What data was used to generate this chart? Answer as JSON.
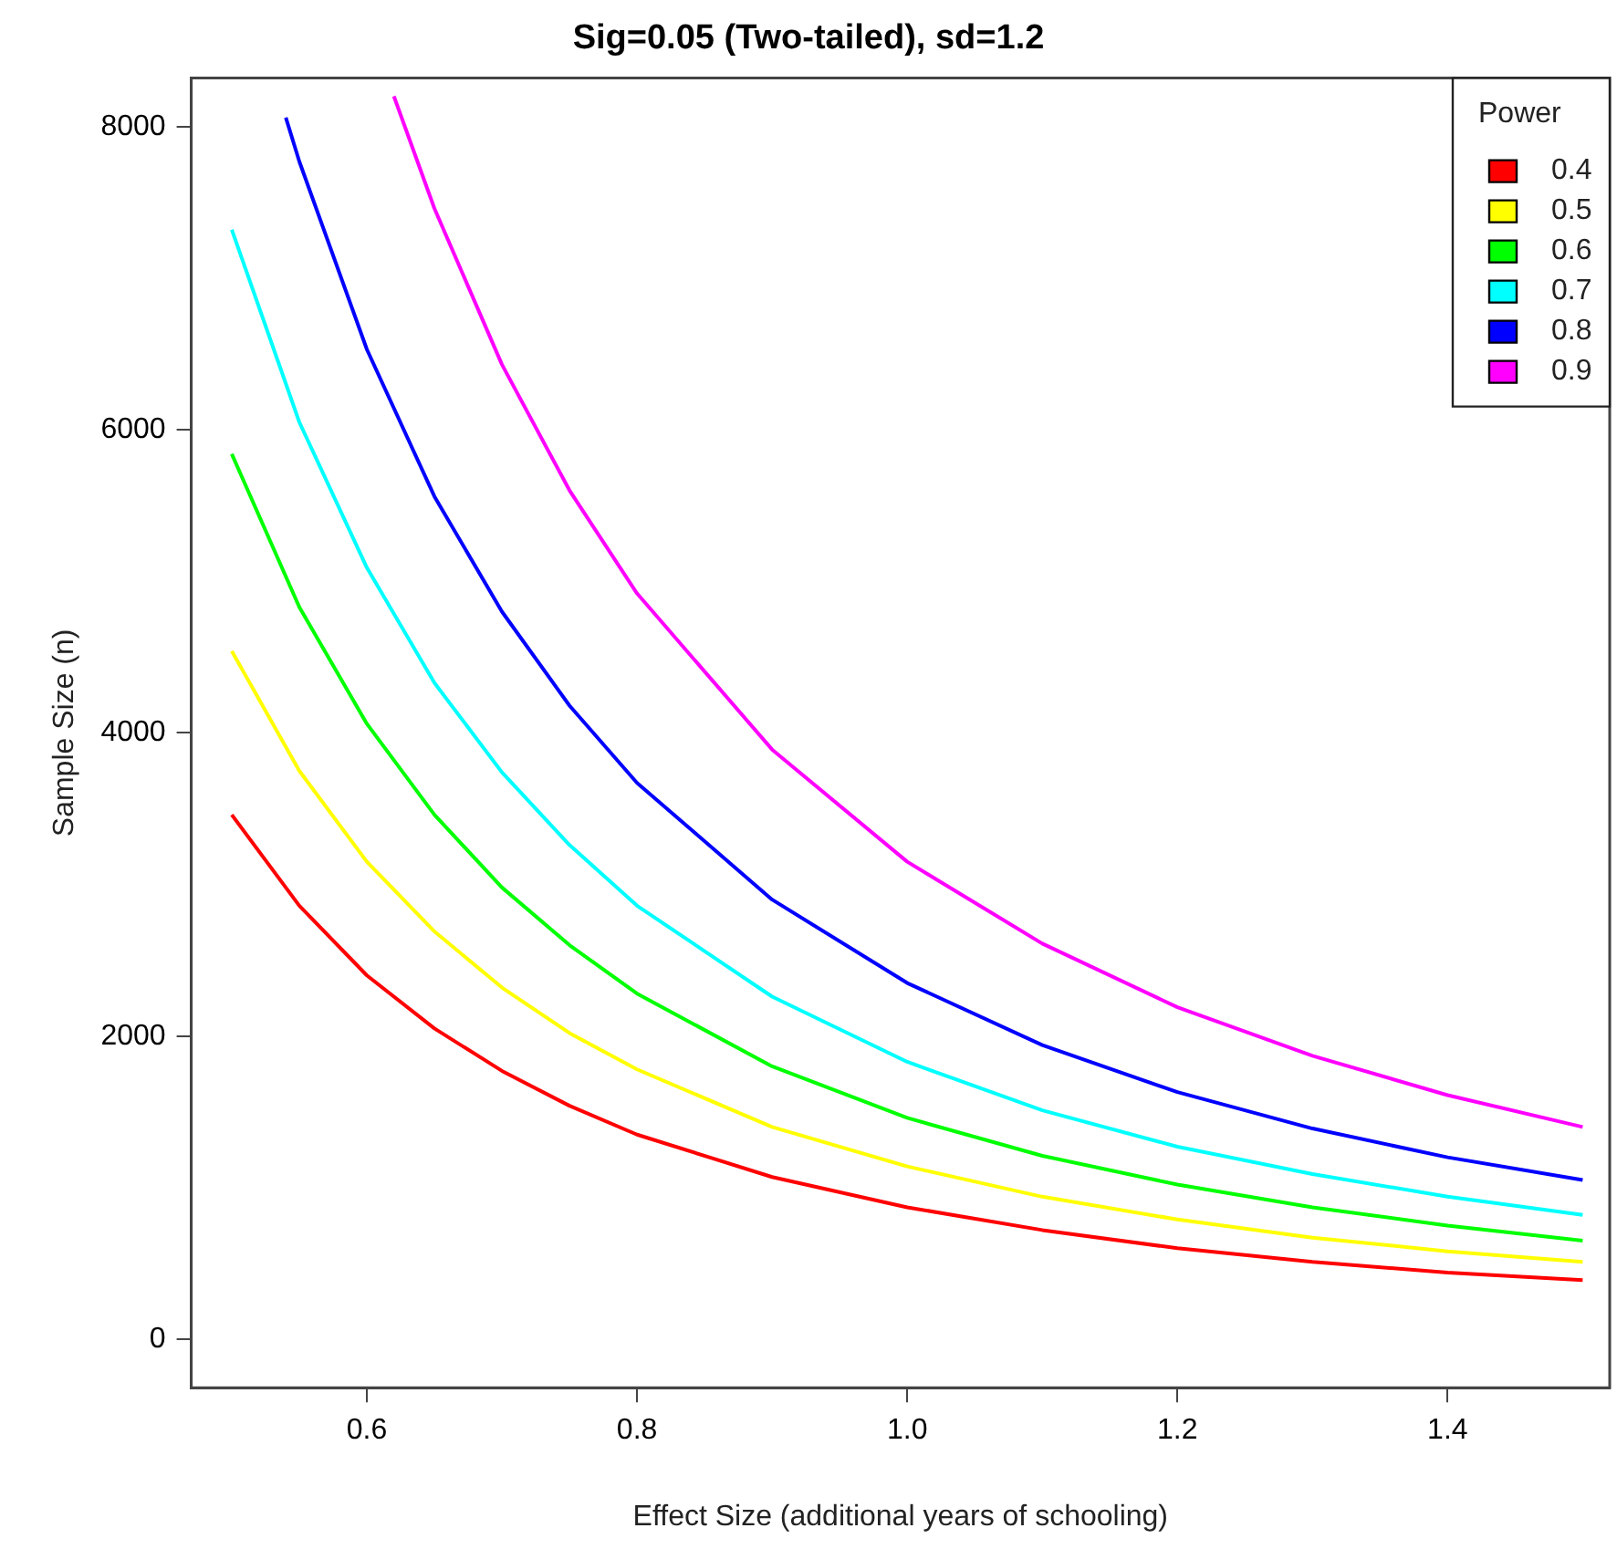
{
  "chart_data": {
    "type": "line",
    "title": "Sig=0.05 (Two-tailed), sd=1.2",
    "xlabel": "Effect Size (additional years of schooling)",
    "ylabel": "Sample Size (n)",
    "legend_title": "Power",
    "legend": "top right",
    "grid": false,
    "marker": "none",
    "line_style": "solid",
    "xlim": [
      0.47,
      1.52
    ],
    "xticks": [
      0.6,
      0.8,
      {
        "value": 1.0,
        "label": "1.0"
      },
      1.2,
      1.4
    ],
    "ylim": [
      -320,
      8320
    ],
    "yticks": [
      0,
      2000,
      4000,
      6000,
      8000
    ],
    "x": [
      0.5,
      0.55,
      0.6,
      0.65,
      0.7,
      0.75,
      0.8,
      0.9,
      1.0,
      1.1,
      1.2,
      1.3,
      1.4,
      1.5
    ],
    "series": [
      {
        "name": "0.4",
        "color": "#ff0000",
        "values": [
          3460,
          2860,
          2400,
          2050,
          1770,
          1540,
          1350,
          1070,
          870,
          720,
          600,
          510,
          440,
          390
        ]
      },
      {
        "name": "0.5",
        "color": "#ffff00",
        "values": [
          4540,
          3750,
          3150,
          2690,
          2320,
          2020,
          1780,
          1400,
          1140,
          940,
          790,
          670,
          580,
          510
        ]
      },
      {
        "name": "0.6",
        "color": "#00ff00",
        "values": [
          5840,
          4830,
          4060,
          3460,
          2980,
          2600,
          2280,
          1800,
          1460,
          1210,
          1020,
          870,
          750,
          650
        ]
      },
      {
        "name": "0.7",
        "color": "#00ffff",
        "values": [
          7320,
          6050,
          5090,
          4330,
          3740,
          3260,
          2860,
          2260,
          1830,
          1510,
          1270,
          1090,
          940,
          820
        ]
      },
      {
        "name": "0.8",
        "color": "#0000ff",
        "x": [
          0.54,
          0.55,
          0.6,
          0.65,
          0.7,
          0.75,
          0.8,
          0.9,
          1.0,
          1.1,
          1.2,
          1.3,
          1.4,
          1.5
        ],
        "values": [
          8060,
          7770,
          6530,
          5560,
          4800,
          4180,
          3670,
          2900,
          2350,
          1940,
          1630,
          1390,
          1200,
          1050
        ]
      },
      {
        "name": "0.9",
        "color": "#ff00ff",
        "x": [
          0.62,
          0.65,
          0.7,
          0.75,
          0.8,
          0.9,
          1.0,
          1.1,
          1.2,
          1.3,
          1.4,
          1.5
        ],
        "values": [
          8200,
          7460,
          6430,
          5600,
          4920,
          3890,
          3150,
          2610,
          2190,
          1870,
          1610,
          1400
        ]
      }
    ]
  }
}
